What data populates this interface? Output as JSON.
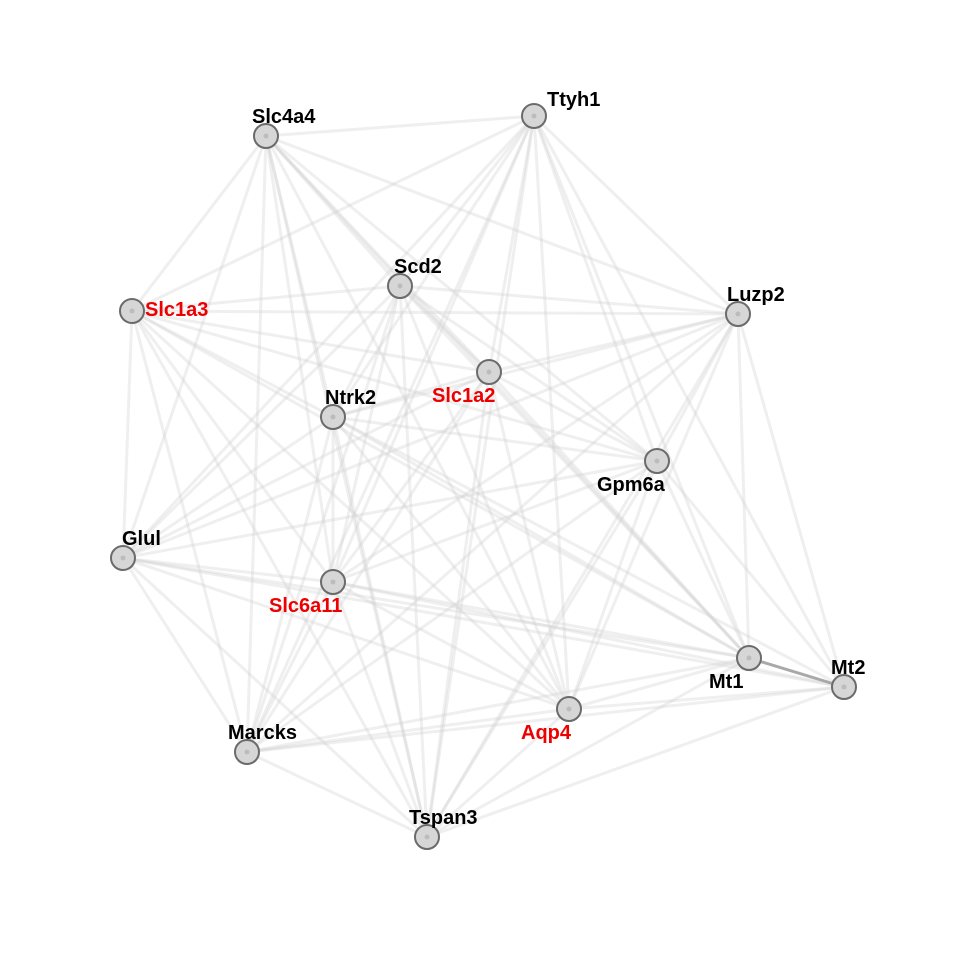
{
  "colors": {
    "default_label": "#000000",
    "highlight_label": "#ee0000",
    "node_fill": "#d6d6d6",
    "node_stroke": "#6b6b6b",
    "edge": "#d2d2d2",
    "strong_edge": "#9a9a9a"
  },
  "nodes": [
    {
      "id": "slc4a4",
      "label": "Slc4a4",
      "highlight": false
    },
    {
      "id": "ttyh1",
      "label": "Ttyh1",
      "highlight": false
    },
    {
      "id": "scd2",
      "label": "Scd2",
      "highlight": false
    },
    {
      "id": "slc1a3",
      "label": "Slc1a3",
      "highlight": true
    },
    {
      "id": "luzp2",
      "label": "Luzp2",
      "highlight": false
    },
    {
      "id": "slc1a2",
      "label": "Slc1a2",
      "highlight": true
    },
    {
      "id": "ntrk2",
      "label": "Ntrk2",
      "highlight": false
    },
    {
      "id": "gpm6a",
      "label": "Gpm6a",
      "highlight": false
    },
    {
      "id": "glul",
      "label": "Glul",
      "highlight": false
    },
    {
      "id": "slc6a11",
      "label": "Slc6a11",
      "highlight": true
    },
    {
      "id": "mt1",
      "label": "Mt1",
      "highlight": false
    },
    {
      "id": "mt2",
      "label": "Mt2",
      "highlight": false
    },
    {
      "id": "aqp4",
      "label": "Aqp4",
      "highlight": true
    },
    {
      "id": "marcks",
      "label": "Marcks",
      "highlight": false
    },
    {
      "id": "tspan3",
      "label": "Tspan3",
      "highlight": false
    }
  ],
  "edges": [
    [
      "slc4a4",
      "ttyh1"
    ],
    [
      "slc4a4",
      "scd2"
    ],
    [
      "slc4a4",
      "slc1a3"
    ],
    [
      "slc4a4",
      "slc1a2"
    ],
    [
      "slc4a4",
      "ntrk2"
    ],
    [
      "slc4a4",
      "gpm6a"
    ],
    [
      "slc4a4",
      "glul"
    ],
    [
      "slc4a4",
      "slc6a11"
    ],
    [
      "slc4a4",
      "mt1"
    ],
    [
      "slc4a4",
      "aqp4"
    ],
    [
      "slc4a4",
      "marcks"
    ],
    [
      "slc4a4",
      "tspan3"
    ],
    [
      "slc4a4",
      "luzp2"
    ],
    [
      "ttyh1",
      "scd2"
    ],
    [
      "ttyh1",
      "slc1a3"
    ],
    [
      "ttyh1",
      "slc1a2"
    ],
    [
      "ttyh1",
      "ntrk2"
    ],
    [
      "ttyh1",
      "gpm6a"
    ],
    [
      "ttyh1",
      "glul"
    ],
    [
      "ttyh1",
      "slc6a11"
    ],
    [
      "ttyh1",
      "mt1"
    ],
    [
      "ttyh1",
      "aqp4"
    ],
    [
      "ttyh1",
      "marcks"
    ],
    [
      "ttyh1",
      "tspan3"
    ],
    [
      "ttyh1",
      "luzp2"
    ],
    [
      "ttyh1",
      "mt2"
    ],
    [
      "scd2",
      "slc1a3"
    ],
    [
      "scd2",
      "slc1a2"
    ],
    [
      "scd2",
      "ntrk2"
    ],
    [
      "scd2",
      "gpm6a"
    ],
    [
      "scd2",
      "glul"
    ],
    [
      "scd2",
      "slc6a11"
    ],
    [
      "scd2",
      "mt1"
    ],
    [
      "scd2",
      "aqp4"
    ],
    [
      "scd2",
      "marcks"
    ],
    [
      "scd2",
      "tspan3"
    ],
    [
      "scd2",
      "luzp2"
    ],
    [
      "slc1a3",
      "slc1a2"
    ],
    [
      "slc1a3",
      "ntrk2"
    ],
    [
      "slc1a3",
      "gpm6a"
    ],
    [
      "slc1a3",
      "glul"
    ],
    [
      "slc1a3",
      "slc6a11"
    ],
    [
      "slc1a3",
      "mt1"
    ],
    [
      "slc1a3",
      "aqp4"
    ],
    [
      "slc1a3",
      "marcks"
    ],
    [
      "slc1a3",
      "tspan3"
    ],
    [
      "slc1a3",
      "luzp2"
    ],
    [
      "luzp2",
      "slc1a2"
    ],
    [
      "luzp2",
      "ntrk2"
    ],
    [
      "luzp2",
      "gpm6a"
    ],
    [
      "luzp2",
      "glul"
    ],
    [
      "luzp2",
      "slc6a11"
    ],
    [
      "luzp2",
      "mt1"
    ],
    [
      "luzp2",
      "mt2"
    ],
    [
      "luzp2",
      "aqp4"
    ],
    [
      "luzp2",
      "marcks"
    ],
    [
      "luzp2",
      "tspan3"
    ],
    [
      "slc1a2",
      "ntrk2"
    ],
    [
      "slc1a2",
      "gpm6a"
    ],
    [
      "slc1a2",
      "glul"
    ],
    [
      "slc1a2",
      "slc6a11"
    ],
    [
      "slc1a2",
      "mt1"
    ],
    [
      "slc1a2",
      "aqp4"
    ],
    [
      "slc1a2",
      "marcks"
    ],
    [
      "slc1a2",
      "tspan3"
    ],
    [
      "ntrk2",
      "gpm6a"
    ],
    [
      "ntrk2",
      "glul"
    ],
    [
      "ntrk2",
      "slc6a11"
    ],
    [
      "ntrk2",
      "mt1"
    ],
    [
      "ntrk2",
      "aqp4"
    ],
    [
      "ntrk2",
      "marcks"
    ],
    [
      "ntrk2",
      "tspan3"
    ],
    [
      "ntrk2",
      "mt2"
    ],
    [
      "gpm6a",
      "glul"
    ],
    [
      "gpm6a",
      "slc6a11"
    ],
    [
      "gpm6a",
      "mt1"
    ],
    [
      "gpm6a",
      "mt2"
    ],
    [
      "gpm6a",
      "aqp4"
    ],
    [
      "gpm6a",
      "marcks"
    ],
    [
      "gpm6a",
      "tspan3"
    ],
    [
      "glul",
      "slc6a11"
    ],
    [
      "glul",
      "mt1"
    ],
    [
      "glul",
      "mt2"
    ],
    [
      "glul",
      "aqp4"
    ],
    [
      "glul",
      "marcks"
    ],
    [
      "glul",
      "tspan3"
    ],
    [
      "slc6a11",
      "mt1"
    ],
    [
      "slc6a11",
      "mt2"
    ],
    [
      "slc6a11",
      "aqp4"
    ],
    [
      "slc6a11",
      "marcks"
    ],
    [
      "slc6a11",
      "tspan3"
    ],
    [
      "mt1",
      "aqp4"
    ],
    [
      "mt1",
      "marcks"
    ],
    [
      "mt1",
      "tspan3"
    ],
    [
      "mt2",
      "aqp4"
    ],
    [
      "mt2",
      "marcks"
    ],
    [
      "mt2",
      "tspan3"
    ],
    [
      "aqp4",
      "marcks"
    ],
    [
      "aqp4",
      "tspan3"
    ],
    [
      "marcks",
      "tspan3"
    ]
  ],
  "strong_edges": [
    [
      "mt1",
      "mt2"
    ]
  ]
}
